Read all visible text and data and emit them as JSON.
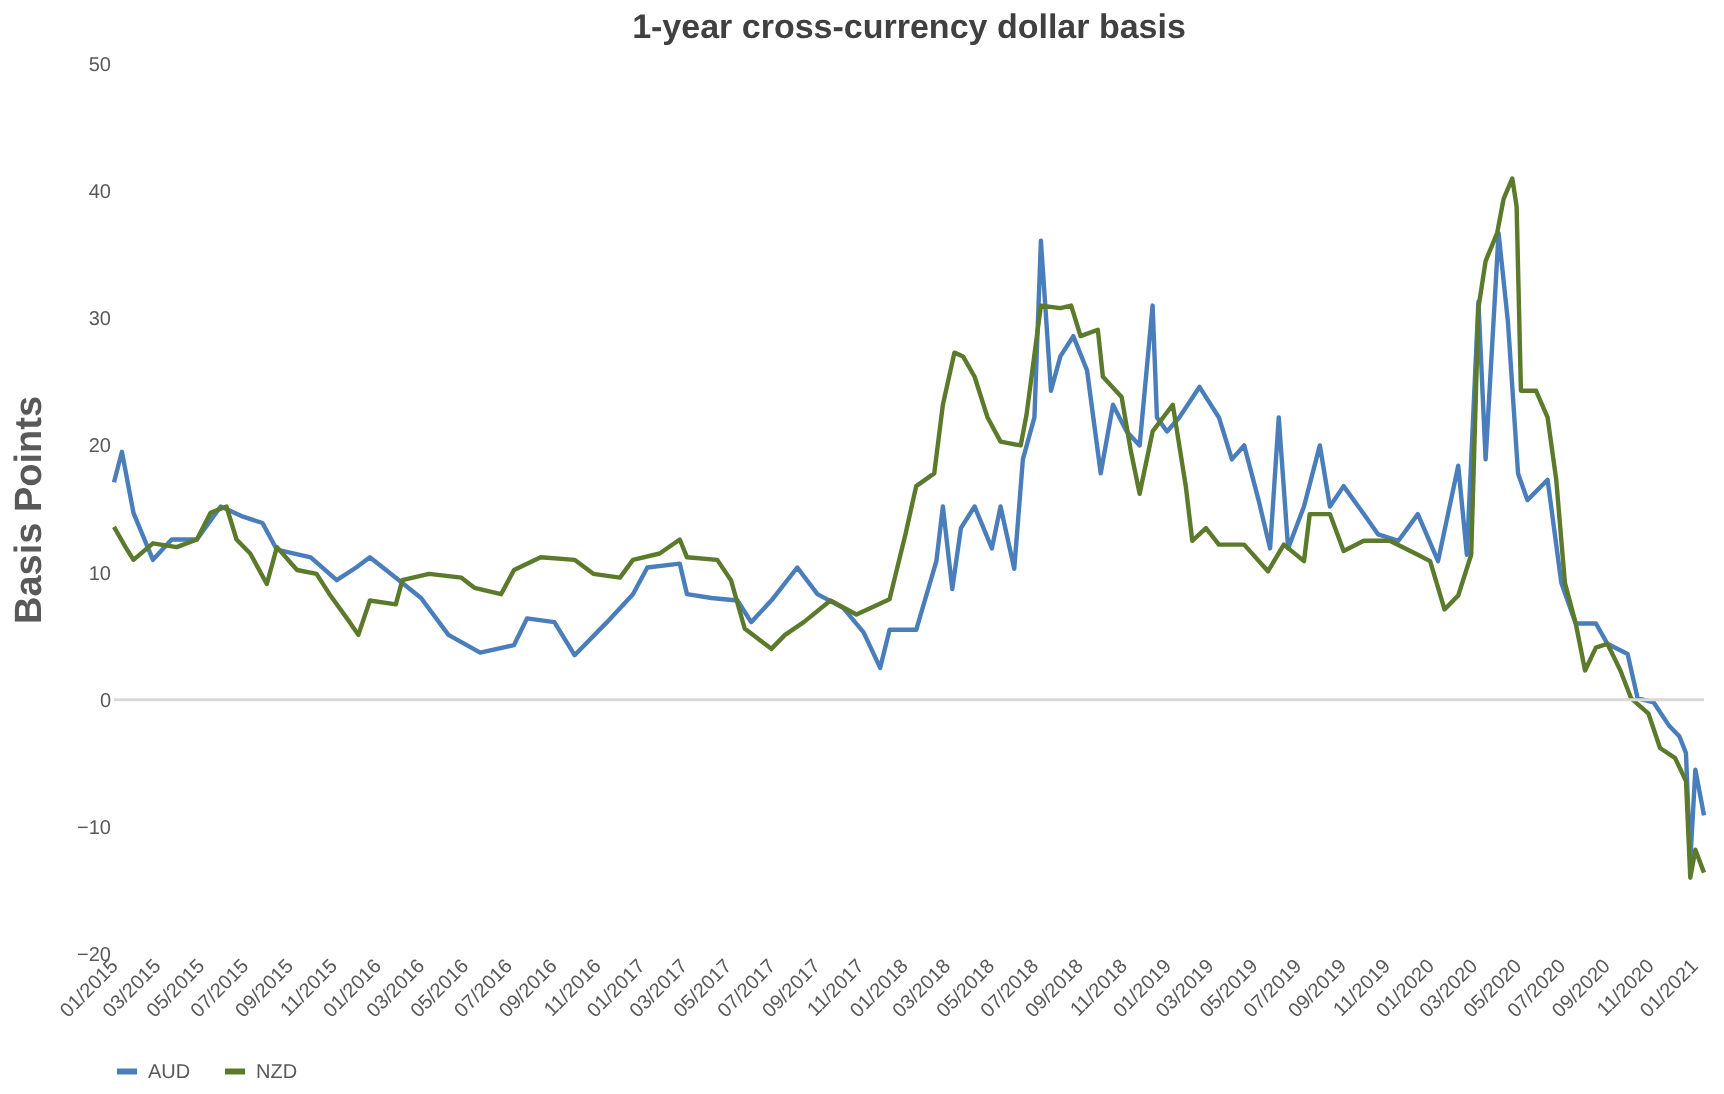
{
  "chart_data": {
    "type": "line",
    "title": "1-year cross-currency dollar basis",
    "ylabel": "Basis Points",
    "xlim": [
      "2015-01-01",
      "2021-01-15"
    ],
    "ylim": [
      -20,
      50
    ],
    "yticks": [
      -20,
      -10,
      0,
      10,
      20,
      30,
      40,
      50
    ],
    "xticks": [
      {
        "value": "2015-01-01",
        "label": "01/2015"
      },
      {
        "value": "2015-03-01",
        "label": "03/2015"
      },
      {
        "value": "2015-05-01",
        "label": "05/2015"
      },
      {
        "value": "2015-07-01",
        "label": "07/2015"
      },
      {
        "value": "2015-09-01",
        "label": "09/2015"
      },
      {
        "value": "2015-11-01",
        "label": "11/2015"
      },
      {
        "value": "2016-01-01",
        "label": "01/2016"
      },
      {
        "value": "2016-03-01",
        "label": "03/2016"
      },
      {
        "value": "2016-05-01",
        "label": "05/2016"
      },
      {
        "value": "2016-07-01",
        "label": "07/2016"
      },
      {
        "value": "2016-09-01",
        "label": "09/2016"
      },
      {
        "value": "2016-11-01",
        "label": "11/2016"
      },
      {
        "value": "2017-01-01",
        "label": "01/2017"
      },
      {
        "value": "2017-03-01",
        "label": "03/2017"
      },
      {
        "value": "2017-05-01",
        "label": "05/2017"
      },
      {
        "value": "2017-07-01",
        "label": "07/2017"
      },
      {
        "value": "2017-09-01",
        "label": "09/2017"
      },
      {
        "value": "2017-11-01",
        "label": "11/2017"
      },
      {
        "value": "2018-01-01",
        "label": "01/2018"
      },
      {
        "value": "2018-03-01",
        "label": "03/2018"
      },
      {
        "value": "2018-05-01",
        "label": "05/2018"
      },
      {
        "value": "2018-07-01",
        "label": "07/2018"
      },
      {
        "value": "2018-09-01",
        "label": "09/2018"
      },
      {
        "value": "2018-11-01",
        "label": "11/2018"
      },
      {
        "value": "2019-01-01",
        "label": "01/2019"
      },
      {
        "value": "2019-03-01",
        "label": "03/2019"
      },
      {
        "value": "2019-05-01",
        "label": "05/2019"
      },
      {
        "value": "2019-07-01",
        "label": "07/2019"
      },
      {
        "value": "2019-09-01",
        "label": "09/2019"
      },
      {
        "value": "2019-11-01",
        "label": "11/2019"
      },
      {
        "value": "2020-01-01",
        "label": "01/2020"
      },
      {
        "value": "2020-03-01",
        "label": "03/2020"
      },
      {
        "value": "2020-05-01",
        "label": "05/2020"
      },
      {
        "value": "2020-07-01",
        "label": "07/2020"
      },
      {
        "value": "2020-09-01",
        "label": "09/2020"
      },
      {
        "value": "2020-11-01",
        "label": "11/2020"
      },
      {
        "value": "2021-01-01",
        "label": "01/2021"
      }
    ],
    "grid": false,
    "legend": "bottom",
    "line_style": "solid",
    "marker": "none",
    "ref_lines": [
      {
        "axis": "y",
        "value": 0,
        "color": "#d9d9d9"
      }
    ],
    "series": [
      {
        "name": "AUD",
        "color": "#4a7ebb",
        "x": [
          "2015-01-01",
          "2015-01-12",
          "2015-01-28",
          "2015-02-24",
          "2015-03-22",
          "2015-04-26",
          "2015-05-29",
          "2015-06-29",
          "2015-07-26",
          "2015-08-15",
          "2015-10-01",
          "2015-11-06",
          "2015-12-03",
          "2015-12-22",
          "2016-01-27",
          "2016-03-02",
          "2016-04-09",
          "2016-05-23",
          "2016-07-09",
          "2016-07-27",
          "2016-09-03",
          "2016-10-01",
          "2016-11-15",
          "2016-12-21",
          "2017-01-10",
          "2017-02-24",
          "2017-03-06",
          "2017-04-09",
          "2017-05-15",
          "2017-06-03",
          "2017-07-01",
          "2017-08-06",
          "2017-09-03",
          "2017-10-09",
          "2017-11-06",
          "2017-11-29",
          "2017-12-12",
          "2018-01-18",
          "2018-02-15",
          "2018-02-24",
          "2018-03-09",
          "2018-03-21",
          "2018-04-09",
          "2018-05-03",
          "2018-05-15",
          "2018-06-03",
          "2018-06-15",
          "2018-07-01",
          "2018-07-10",
          "2018-07-24",
          "2018-08-06",
          "2018-08-24",
          "2018-09-12",
          "2018-10-01",
          "2018-10-18",
          "2018-11-06",
          "2018-11-24",
          "2018-12-12",
          "2018-12-18",
          "2019-01-01",
          "2019-01-18",
          "2019-02-15",
          "2019-03-14",
          "2019-04-01",
          "2019-04-18",
          "2019-05-08",
          "2019-05-24",
          "2019-06-05",
          "2019-06-18",
          "2019-07-10",
          "2019-08-01",
          "2019-08-15",
          "2019-09-03",
          "2019-10-01",
          "2019-10-21",
          "2019-11-18",
          "2019-12-15",
          "2020-01-12",
          "2020-02-09",
          "2020-02-21",
          "2020-03-08",
          "2020-03-18",
          "2020-04-05",
          "2020-04-18",
          "2020-05-02",
          "2020-05-15",
          "2020-06-12",
          "2020-07-01",
          "2020-07-21",
          "2020-08-18",
          "2020-09-03",
          "2020-10-01",
          "2020-10-15",
          "2020-11-06",
          "2020-11-27",
          "2020-12-12",
          "2020-12-21",
          "2020-12-27",
          "2021-01-03",
          "2021-01-15"
        ],
        "values": [
          17.1,
          19.5,
          14.7,
          11.0,
          12.6,
          12.6,
          15.2,
          14.4,
          13.9,
          11.8,
          11.2,
          9.4,
          10.4,
          11.2,
          9.6,
          8.0,
          5.1,
          3.7,
          4.3,
          6.4,
          6.1,
          3.5,
          6.1,
          8.3,
          10.4,
          10.7,
          8.3,
          8.0,
          7.8,
          6.1,
          7.8,
          10.4,
          8.3,
          7.2,
          5.3,
          2.5,
          5.5,
          5.5,
          10.9,
          15.2,
          8.7,
          13.5,
          15.2,
          11.9,
          15.2,
          10.3,
          18.9,
          22.2,
          36.1,
          24.3,
          27.0,
          28.6,
          25.9,
          17.8,
          23.2,
          21.1,
          20.0,
          31.0,
          22.2,
          21.1,
          22.2,
          24.6,
          22.2,
          18.9,
          20.0,
          15.7,
          11.9,
          22.2,
          11.9,
          15.2,
          20.0,
          15.2,
          16.8,
          14.6,
          13.0,
          12.5,
          14.6,
          10.9,
          18.4,
          11.4,
          31.3,
          18.9,
          36.7,
          29.7,
          17.8,
          15.7,
          17.3,
          9.2,
          6.0,
          6.0,
          4.4,
          3.6,
          0.1,
          -0.2,
          -2.0,
          -2.9,
          -4.2,
          -12.7,
          -5.5,
          -9.1
        ]
      },
      {
        "name": "NZD",
        "color": "#5b7a2b",
        "x": [
          "2015-01-01",
          "2015-01-17",
          "2015-01-28",
          "2015-02-24",
          "2015-03-29",
          "2015-04-26",
          "2015-05-15",
          "2015-06-06",
          "2015-06-20",
          "2015-07-09",
          "2015-08-01",
          "2015-08-15",
          "2015-09-12",
          "2015-10-09",
          "2015-10-27",
          "2015-11-24",
          "2015-12-06",
          "2015-12-22",
          "2016-01-27",
          "2016-02-05",
          "2016-03-13",
          "2016-04-27",
          "2016-05-15",
          "2016-06-21",
          "2016-07-09",
          "2016-08-15",
          "2016-10-01",
          "2016-10-27",
          "2016-12-03",
          "2016-12-21",
          "2017-01-27",
          "2017-02-24",
          "2017-03-06",
          "2017-04-17",
          "2017-05-06",
          "2017-05-25",
          "2017-07-01",
          "2017-07-20",
          "2017-08-15",
          "2017-09-21",
          "2017-10-27",
          "2017-11-15",
          "2017-12-12",
          "2018-01-03",
          "2018-01-18",
          "2018-02-12",
          "2018-02-24",
          "2018-03-12",
          "2018-03-24",
          "2018-04-09",
          "2018-04-27",
          "2018-05-15",
          "2018-06-12",
          "2018-06-20",
          "2018-07-10",
          "2018-08-06",
          "2018-08-21",
          "2018-09-03",
          "2018-09-27",
          "2018-10-04",
          "2018-10-30",
          "2018-11-12",
          "2018-11-24",
          "2018-12-12",
          "2019-01-09",
          "2019-01-27",
          "2019-02-05",
          "2019-02-24",
          "2019-03-14",
          "2019-04-18",
          "2019-05-21",
          "2019-06-12",
          "2019-07-10",
          "2019-07-18",
          "2019-08-15",
          "2019-09-03",
          "2019-10-01",
          "2019-11-06",
          "2019-12-15",
          "2020-01-01",
          "2020-01-21",
          "2020-02-09",
          "2020-02-27",
          "2020-03-08",
          "2020-03-18",
          "2020-04-03",
          "2020-04-12",
          "2020-04-24",
          "2020-04-30",
          "2020-05-06",
          "2020-05-27",
          "2020-06-12",
          "2020-06-24",
          "2020-07-06",
          "2020-07-21",
          "2020-08-03",
          "2020-08-18",
          "2020-09-03",
          "2020-09-21",
          "2020-10-06",
          "2020-10-30",
          "2020-11-15",
          "2020-12-06",
          "2020-12-21",
          "2020-12-27",
          "2021-01-03",
          "2021-01-15"
        ],
        "values": [
          13.6,
          12.0,
          11.0,
          12.3,
          12.0,
          12.6,
          14.7,
          15.2,
          12.6,
          11.5,
          9.1,
          12.0,
          10.2,
          9.9,
          8.3,
          6.1,
          5.1,
          7.8,
          7.5,
          9.4,
          9.9,
          9.6,
          8.8,
          8.3,
          10.2,
          11.2,
          11.0,
          9.9,
          9.6,
          11.0,
          11.5,
          12.6,
          11.2,
          11.0,
          9.4,
          5.6,
          4.0,
          5.1,
          6.1,
          7.8,
          6.7,
          7.2,
          7.9,
          13.0,
          16.8,
          17.8,
          23.2,
          27.3,
          27.0,
          25.4,
          22.2,
          20.3,
          20.0,
          22.4,
          31.0,
          30.8,
          31.0,
          28.6,
          29.1,
          25.4,
          23.8,
          19.5,
          16.2,
          21.1,
          23.2,
          16.8,
          12.5,
          13.5,
          12.2,
          12.2,
          10.1,
          12.2,
          10.9,
          14.6,
          14.6,
          11.7,
          12.5,
          12.5,
          11.4,
          10.9,
          7.1,
          8.2,
          11.4,
          30.8,
          34.5,
          36.7,
          39.4,
          41.0,
          38.8,
          24.3,
          24.3,
          22.2,
          17.3,
          9.2,
          6.0,
          2.3,
          4.1,
          4.4,
          2.3,
          0.1,
          -1.1,
          -3.8,
          -4.6,
          -6.4,
          -14.0,
          -11.8,
          -13.6
        ]
      }
    ]
  }
}
